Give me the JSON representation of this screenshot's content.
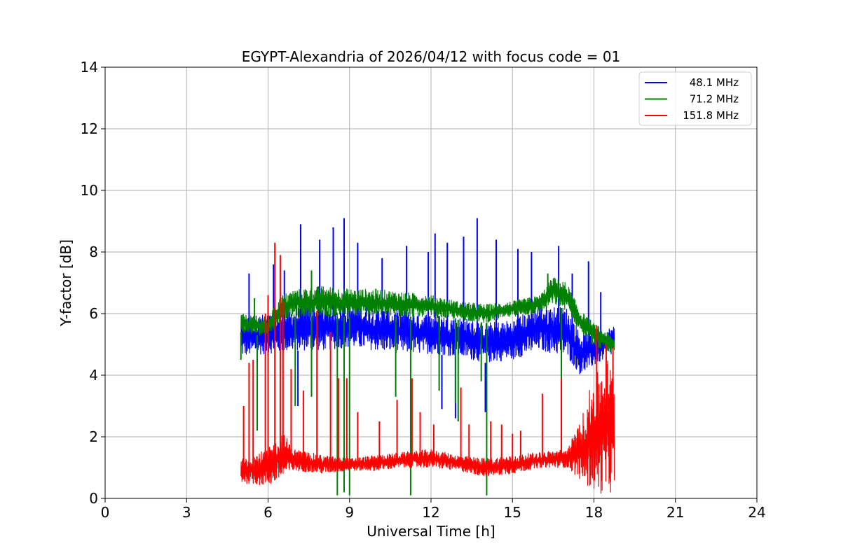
{
  "chart_data": {
    "type": "line",
    "title": "EGYPT-Alexandria of 2026/04/12 with focus code = 01",
    "xlabel": "Universal Time [h]",
    "ylabel": "Y-factor [dB]",
    "xlim": [
      0,
      24
    ],
    "ylim": [
      0,
      14
    ],
    "xticks": [
      0,
      3,
      6,
      9,
      12,
      15,
      18,
      21,
      24
    ],
    "yticks": [
      0,
      2,
      4,
      6,
      8,
      10,
      12,
      14
    ],
    "xtick_labels": [
      "0",
      "3",
      "6",
      "9",
      "12",
      "15",
      "18",
      "21",
      "24"
    ],
    "ytick_labels": [
      "0",
      "2",
      "4",
      "6",
      "8",
      "10",
      "12",
      "14"
    ],
    "grid": true,
    "legend_position": "top-right",
    "series": [
      {
        "name": "48.1 MHz",
        "color": "#0000ff",
        "band": [
          {
            "x": 5.0,
            "lo": 4.6,
            "hi": 5.9
          },
          {
            "x": 6.0,
            "lo": 4.7,
            "hi": 6.0
          },
          {
            "x": 7.0,
            "lo": 4.8,
            "hi": 6.2
          },
          {
            "x": 8.0,
            "lo": 4.8,
            "hi": 6.3
          },
          {
            "x": 9.0,
            "lo": 4.9,
            "hi": 6.3
          },
          {
            "x": 10.0,
            "lo": 4.8,
            "hi": 6.2
          },
          {
            "x": 11.0,
            "lo": 4.7,
            "hi": 6.1
          },
          {
            "x": 12.0,
            "lo": 4.7,
            "hi": 6.0
          },
          {
            "x": 13.0,
            "lo": 4.6,
            "hi": 5.9
          },
          {
            "x": 14.0,
            "lo": 4.4,
            "hi": 5.7
          },
          {
            "x": 15.0,
            "lo": 4.5,
            "hi": 5.8
          },
          {
            "x": 16.0,
            "lo": 4.8,
            "hi": 6.3
          },
          {
            "x": 17.0,
            "lo": 4.6,
            "hi": 6.2
          },
          {
            "x": 17.5,
            "lo": 4.0,
            "hi": 5.4
          },
          {
            "x": 18.0,
            "lo": 4.3,
            "hi": 5.4
          },
          {
            "x": 18.75,
            "lo": 4.7,
            "hi": 5.6
          }
        ],
        "spikes": [
          [
            5.3,
            7.3
          ],
          [
            6.2,
            7.6
          ],
          [
            6.6,
            7.4
          ],
          [
            7.2,
            8.9
          ],
          [
            7.9,
            8.4
          ],
          [
            8.4,
            8.8
          ],
          [
            8.8,
            9.1
          ],
          [
            9.3,
            8.3
          ],
          [
            10.2,
            7.8
          ],
          [
            11.1,
            8.2
          ],
          [
            11.9,
            8.0
          ],
          [
            12.15,
            8.6
          ],
          [
            12.6,
            8.3
          ],
          [
            13.2,
            8.5
          ],
          [
            13.7,
            9.1
          ],
          [
            14.4,
            8.4
          ],
          [
            15.2,
            8.1
          ],
          [
            15.7,
            8.0
          ],
          [
            16.7,
            8.2
          ],
          [
            17.2,
            7.3
          ],
          [
            17.8,
            7.7
          ],
          [
            18.25,
            6.7
          ]
        ],
        "dips": [
          [
            7.1,
            3.0
          ],
          [
            12.4,
            2.9
          ],
          [
            12.9,
            2.6
          ],
          [
            14.0,
            2.8
          ],
          [
            16.8,
            3.3
          ]
        ]
      },
      {
        "name": "71.2 MHz",
        "color": "#008000",
        "band": [
          {
            "x": 5.0,
            "lo": 5.4,
            "hi": 6.0
          },
          {
            "x": 5.5,
            "lo": 5.3,
            "hi": 5.9
          },
          {
            "x": 6.0,
            "lo": 5.3,
            "hi": 5.9
          },
          {
            "x": 6.5,
            "lo": 5.8,
            "hi": 6.6
          },
          {
            "x": 7.0,
            "lo": 5.9,
            "hi": 6.8
          },
          {
            "x": 8.0,
            "lo": 5.9,
            "hi": 6.9
          },
          {
            "x": 9.0,
            "lo": 5.9,
            "hi": 6.8
          },
          {
            "x": 10.0,
            "lo": 5.9,
            "hi": 6.8
          },
          {
            "x": 11.0,
            "lo": 5.9,
            "hi": 6.7
          },
          {
            "x": 12.0,
            "lo": 5.9,
            "hi": 6.6
          },
          {
            "x": 13.0,
            "lo": 5.8,
            "hi": 6.4
          },
          {
            "x": 14.0,
            "lo": 5.7,
            "hi": 6.3
          },
          {
            "x": 15.0,
            "lo": 5.9,
            "hi": 6.4
          },
          {
            "x": 16.0,
            "lo": 6.0,
            "hi": 6.6
          },
          {
            "x": 16.5,
            "lo": 6.3,
            "hi": 7.2
          },
          {
            "x": 17.0,
            "lo": 6.1,
            "hi": 7.0
          },
          {
            "x": 17.5,
            "lo": 5.4,
            "hi": 6.1
          },
          {
            "x": 18.0,
            "lo": 4.9,
            "hi": 5.7
          },
          {
            "x": 18.75,
            "lo": 4.7,
            "hi": 5.2
          }
        ],
        "spikes": [
          [
            5.5,
            6.5
          ],
          [
            7.6,
            7.4
          ],
          [
            16.3,
            7.3
          ]
        ],
        "dips": [
          [
            5.0,
            4.5
          ],
          [
            5.6,
            2.2
          ],
          [
            6.0,
            1.8
          ],
          [
            7.0,
            3.0
          ],
          [
            7.6,
            3.3
          ],
          [
            8.55,
            0.1
          ],
          [
            8.8,
            0.2
          ],
          [
            9.0,
            0.1
          ],
          [
            10.7,
            3.3
          ],
          [
            11.25,
            0.1
          ],
          [
            12.3,
            3.5
          ],
          [
            12.9,
            3.1
          ],
          [
            13.0,
            2.5
          ],
          [
            13.85,
            3.8
          ],
          [
            14.05,
            0.1
          ],
          [
            16.8,
            3.3
          ]
        ]
      },
      {
        "name": "151.8 MHz",
        "color": "#ff0000",
        "band": [
          {
            "x": 5.0,
            "lo": 0.5,
            "hi": 1.3
          },
          {
            "x": 6.0,
            "lo": 0.4,
            "hi": 1.6
          },
          {
            "x": 6.5,
            "lo": 0.6,
            "hi": 2.2
          },
          {
            "x": 7.0,
            "lo": 0.9,
            "hi": 1.6
          },
          {
            "x": 8.0,
            "lo": 0.8,
            "hi": 1.4
          },
          {
            "x": 9.0,
            "lo": 0.9,
            "hi": 1.3
          },
          {
            "x": 10.0,
            "lo": 0.9,
            "hi": 1.4
          },
          {
            "x": 11.0,
            "lo": 1.0,
            "hi": 1.5
          },
          {
            "x": 12.0,
            "lo": 1.0,
            "hi": 1.6
          },
          {
            "x": 13.0,
            "lo": 0.9,
            "hi": 1.4
          },
          {
            "x": 14.0,
            "lo": 0.7,
            "hi": 1.3
          },
          {
            "x": 15.0,
            "lo": 0.8,
            "hi": 1.4
          },
          {
            "x": 16.0,
            "lo": 1.0,
            "hi": 1.5
          },
          {
            "x": 17.0,
            "lo": 1.0,
            "hi": 1.6
          },
          {
            "x": 17.5,
            "lo": 0.6,
            "hi": 2.5
          },
          {
            "x": 18.0,
            "lo": 0.2,
            "hi": 4.0
          },
          {
            "x": 18.5,
            "lo": 0.1,
            "hi": 4.6
          },
          {
            "x": 18.75,
            "lo": 0.3,
            "hi": 4.0
          }
        ],
        "spikes": [
          [
            5.1,
            3.0
          ],
          [
            5.3,
            4.4
          ],
          [
            5.45,
            4.5
          ],
          [
            5.9,
            6.0
          ],
          [
            6.0,
            6.6
          ],
          [
            6.25,
            8.3
          ],
          [
            6.45,
            7.9
          ],
          [
            6.55,
            6.4
          ],
          [
            6.85,
            4.2
          ],
          [
            7.3,
            3.5
          ],
          [
            7.8,
            6.1
          ],
          [
            8.3,
            5.4
          ],
          [
            8.6,
            3.9
          ],
          [
            8.9,
            3.9
          ],
          [
            9.3,
            2.8
          ],
          [
            10.1,
            2.5
          ],
          [
            10.75,
            3.2
          ],
          [
            11.3,
            3.9
          ],
          [
            11.6,
            2.8
          ],
          [
            12.1,
            2.4
          ],
          [
            13.1,
            3.6
          ],
          [
            13.4,
            2.4
          ],
          [
            14.2,
            2.5
          ],
          [
            14.6,
            2.4
          ],
          [
            15.0,
            2.1
          ],
          [
            15.3,
            2.2
          ],
          [
            16.1,
            3.4
          ],
          [
            16.8,
            3.9
          ],
          [
            18.1,
            5.6
          ],
          [
            18.45,
            5.0
          ],
          [
            18.7,
            4.9
          ]
        ],
        "dips": []
      }
    ]
  }
}
